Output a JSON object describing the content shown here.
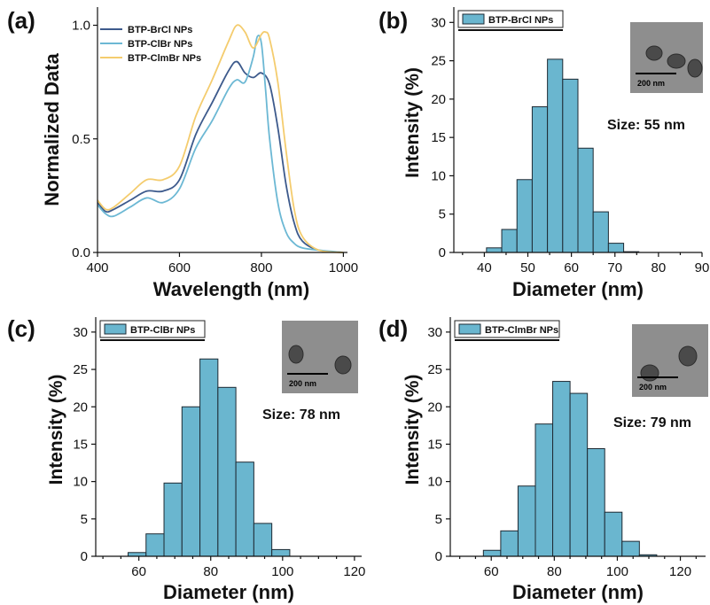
{
  "chart_data": [
    {
      "panel": "(a)",
      "type": "line",
      "xlabel": "Wavelength (nm)",
      "ylabel": "Normalized Data",
      "xlim": [
        400,
        1010
      ],
      "ylim": [
        0,
        1.08
      ],
      "xticks": [
        400,
        600,
        800,
        1000
      ],
      "yticks": [
        0.0,
        0.5,
        1.0
      ],
      "ytick_labels": [
        "0.0",
        "0.5",
        "1.0"
      ],
      "legend_position": "top-left",
      "series": [
        {
          "name": "BTP-BrCl NPs",
          "color": "#3d5a8c",
          "x": [
            400,
            420,
            440,
            480,
            520,
            560,
            600,
            640,
            680,
            720,
            740,
            760,
            780,
            800,
            820,
            840,
            860,
            880,
            900,
            940,
            1000
          ],
          "y": [
            0.22,
            0.18,
            0.19,
            0.23,
            0.27,
            0.27,
            0.32,
            0.52,
            0.66,
            0.8,
            0.84,
            0.79,
            0.77,
            0.79,
            0.74,
            0.55,
            0.3,
            0.13,
            0.05,
            0.01,
            0.0
          ]
        },
        {
          "name": "BTP-ClBr NPs",
          "color": "#6cb8d4",
          "x": [
            400,
            420,
            440,
            480,
            520,
            560,
            600,
            640,
            680,
            720,
            740,
            760,
            780,
            790,
            800,
            810,
            820,
            840,
            860,
            880,
            900,
            940,
            1000
          ],
          "y": [
            0.21,
            0.17,
            0.16,
            0.2,
            0.24,
            0.22,
            0.28,
            0.46,
            0.58,
            0.72,
            0.76,
            0.75,
            0.86,
            0.95,
            0.92,
            0.72,
            0.5,
            0.22,
            0.09,
            0.04,
            0.02,
            0.01,
            0.0
          ]
        },
        {
          "name": "BTP-ClmBr NPs",
          "color": "#f4cc6e",
          "x": [
            400,
            420,
            440,
            480,
            520,
            560,
            600,
            640,
            680,
            720,
            740,
            760,
            780,
            800,
            810,
            820,
            840,
            860,
            880,
            900,
            940,
            1000
          ],
          "y": [
            0.23,
            0.19,
            0.2,
            0.26,
            0.32,
            0.32,
            0.38,
            0.6,
            0.76,
            0.93,
            1.0,
            0.97,
            0.9,
            0.96,
            0.97,
            0.94,
            0.75,
            0.45,
            0.19,
            0.07,
            0.01,
            0.0
          ]
        }
      ]
    },
    {
      "panel": "(b)",
      "type": "bar",
      "legend": "BTP-BrCl NPs",
      "xlabel": "Diameter (nm)",
      "ylabel": "Intensity (%)",
      "annotation": "Size: 55 nm",
      "scale_bar": "200 nm",
      "xlim": [
        33,
        90
      ],
      "ylim": [
        0,
        32
      ],
      "xticks": [
        40,
        50,
        60,
        70,
        80,
        90
      ],
      "yticks": [
        0,
        5,
        10,
        15,
        20,
        25,
        30
      ],
      "bin_edges": [
        40.5,
        44,
        47.5,
        51,
        54.5,
        58,
        61.5,
        65,
        68.5,
        72,
        75.5,
        79
      ],
      "values": [
        0.6,
        3.0,
        9.5,
        19.0,
        25.2,
        22.6,
        13.6,
        5.3,
        1.2,
        0.1,
        0.0
      ]
    },
    {
      "panel": "(c)",
      "type": "bar",
      "legend": "BTP-ClBr NPs",
      "xlabel": "Diameter (nm)",
      "ylabel": "Intensity (%)",
      "annotation": "Size: 78 nm",
      "scale_bar": "200 nm",
      "xlim": [
        48,
        122
      ],
      "ylim": [
        0,
        32
      ],
      "xticks": [
        60,
        80,
        100,
        120
      ],
      "yticks": [
        0,
        5,
        10,
        15,
        20,
        25,
        30
      ],
      "bin_edges": [
        57,
        62,
        67,
        72,
        77,
        82,
        87,
        92,
        97,
        102,
        107,
        112
      ],
      "values": [
        0.5,
        3.0,
        9.8,
        20.0,
        26.4,
        22.6,
        12.6,
        4.4,
        0.9,
        0.0,
        0.0
      ]
    },
    {
      "panel": "(d)",
      "type": "bar",
      "legend": "BTP-ClmBr NPs",
      "xlabel": "Diameter (nm)",
      "ylabel": "Intensity (%)",
      "annotation": "Size: 79 nm",
      "scale_bar": "200 nm",
      "xlim": [
        47,
        128
      ],
      "ylim": [
        0,
        32
      ],
      "xticks": [
        60,
        80,
        100,
        120
      ],
      "yticks": [
        0,
        5,
        10,
        15,
        20,
        25,
        30
      ],
      "bin_edges": [
        57.5,
        63,
        68.5,
        74,
        79.5,
        85,
        90.5,
        96,
        101.5,
        107,
        112.5,
        118
      ],
      "values": [
        0.8,
        3.4,
        9.4,
        17.7,
        23.4,
        21.8,
        14.4,
        5.9,
        2.0,
        0.2,
        0.0
      ]
    }
  ]
}
